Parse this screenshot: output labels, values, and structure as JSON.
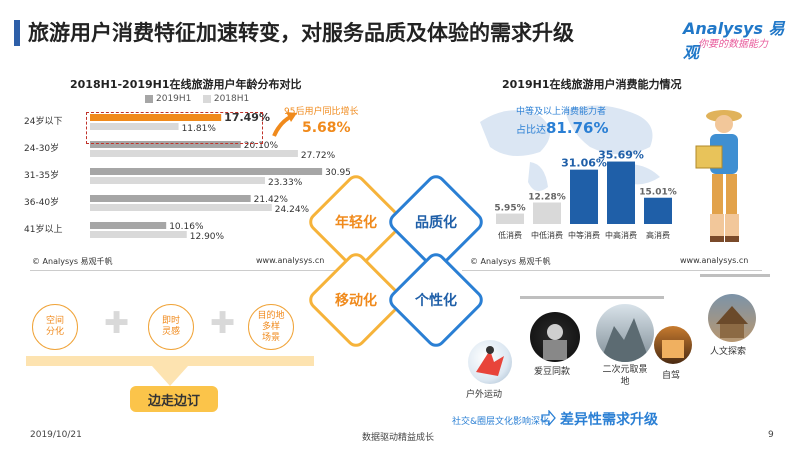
{
  "header": {
    "title": "旅游用户消费特征加速转变，对服务品质及体验的需求升级",
    "logo_brand": "Analysys 易观",
    "logo_tagline": "你要的数据能力"
  },
  "left_chart": {
    "title": "2018H1-2019H1在线旅游用户年龄分布对比",
    "source": "© Analysys 易观千帆",
    "url": "www.analysys.cn",
    "callout_label": "95后用户同比增长",
    "callout_value": "5.68%"
  },
  "right_chart": {
    "title": "2019H1在线旅游用户消费能力情况",
    "source": "© Analysys 易观千帆",
    "url": "www.analysys.cn",
    "callout_line1": "中等及以上消费能力者",
    "callout_prefix": "占比达",
    "callout_value": "81.76%"
  },
  "chart_data": [
    {
      "type": "bar",
      "orientation": "horizontal",
      "title": "2018H1-2019H1在线旅游用户年龄分布对比",
      "categories": [
        "24岁以下",
        "24-30岁",
        "31-35岁",
        "36-40岁",
        "41岁以上"
      ],
      "series": [
        {
          "name": "2019H1",
          "values": [
            17.49,
            20.1,
            30.95,
            21.42,
            10.16
          ],
          "labels": [
            "17.49%",
            "20.10%",
            "30.95%",
            "21.42%",
            "10.16%"
          ],
          "color": "#a6a6a6",
          "highlight_color": "#f08a1c"
        },
        {
          "name": "2018H1",
          "values": [
            11.81,
            27.72,
            23.33,
            24.24,
            12.9
          ],
          "labels": [
            "11.81%",
            "27.72%",
            "23.33%",
            "24.24%",
            "12.90%"
          ],
          "color": "#d9d9d9"
        }
      ],
      "xlim": [
        0,
        32
      ],
      "legend": "top"
    },
    {
      "type": "bar",
      "title": "2019H1在线旅游用户消费能力情况",
      "categories": [
        "低消费",
        "中低消费",
        "中等消费",
        "中高消费",
        "高消费"
      ],
      "values": [
        5.95,
        12.28,
        31.06,
        35.69,
        15.01
      ],
      "labels": [
        "5.95%",
        "12.28%",
        "31.06%",
        "35.69%",
        "15.01%"
      ],
      "colors": [
        "#d9d9d9",
        "#d9d9d9",
        "#1f5fa8",
        "#1f5fa8",
        "#1f5fa8"
      ],
      "ylim": [
        0,
        40
      ]
    }
  ],
  "diamonds": [
    "年轻化",
    "品质化",
    "移动化",
    "个性化"
  ],
  "circles": [
    {
      "line1": "空间",
      "line2": "分化"
    },
    {
      "line1": "即时",
      "line2": "灵感"
    },
    {
      "line1": "目的地",
      "line2": "多样",
      "line3": "场景"
    }
  ],
  "bottom_button": "边走边订",
  "photos": [
    {
      "caption": "户外运动"
    },
    {
      "caption": "爱豆同款"
    },
    {
      "caption": "二次元取景地"
    },
    {
      "caption": "自驾"
    },
    {
      "caption": "人文探索"
    }
  ],
  "upgrade": {
    "left": "社交&圈层文化影响深化",
    "right": "差异性需求升级"
  },
  "footer": {
    "date": "2019/10/21",
    "center": "数据驱动精益成长",
    "page": "9"
  },
  "colors": {
    "orange": "#f08a1c",
    "blue": "#2a7fd4",
    "dark_blue": "#1f5fa8",
    "yellow": "#fbc44a"
  }
}
